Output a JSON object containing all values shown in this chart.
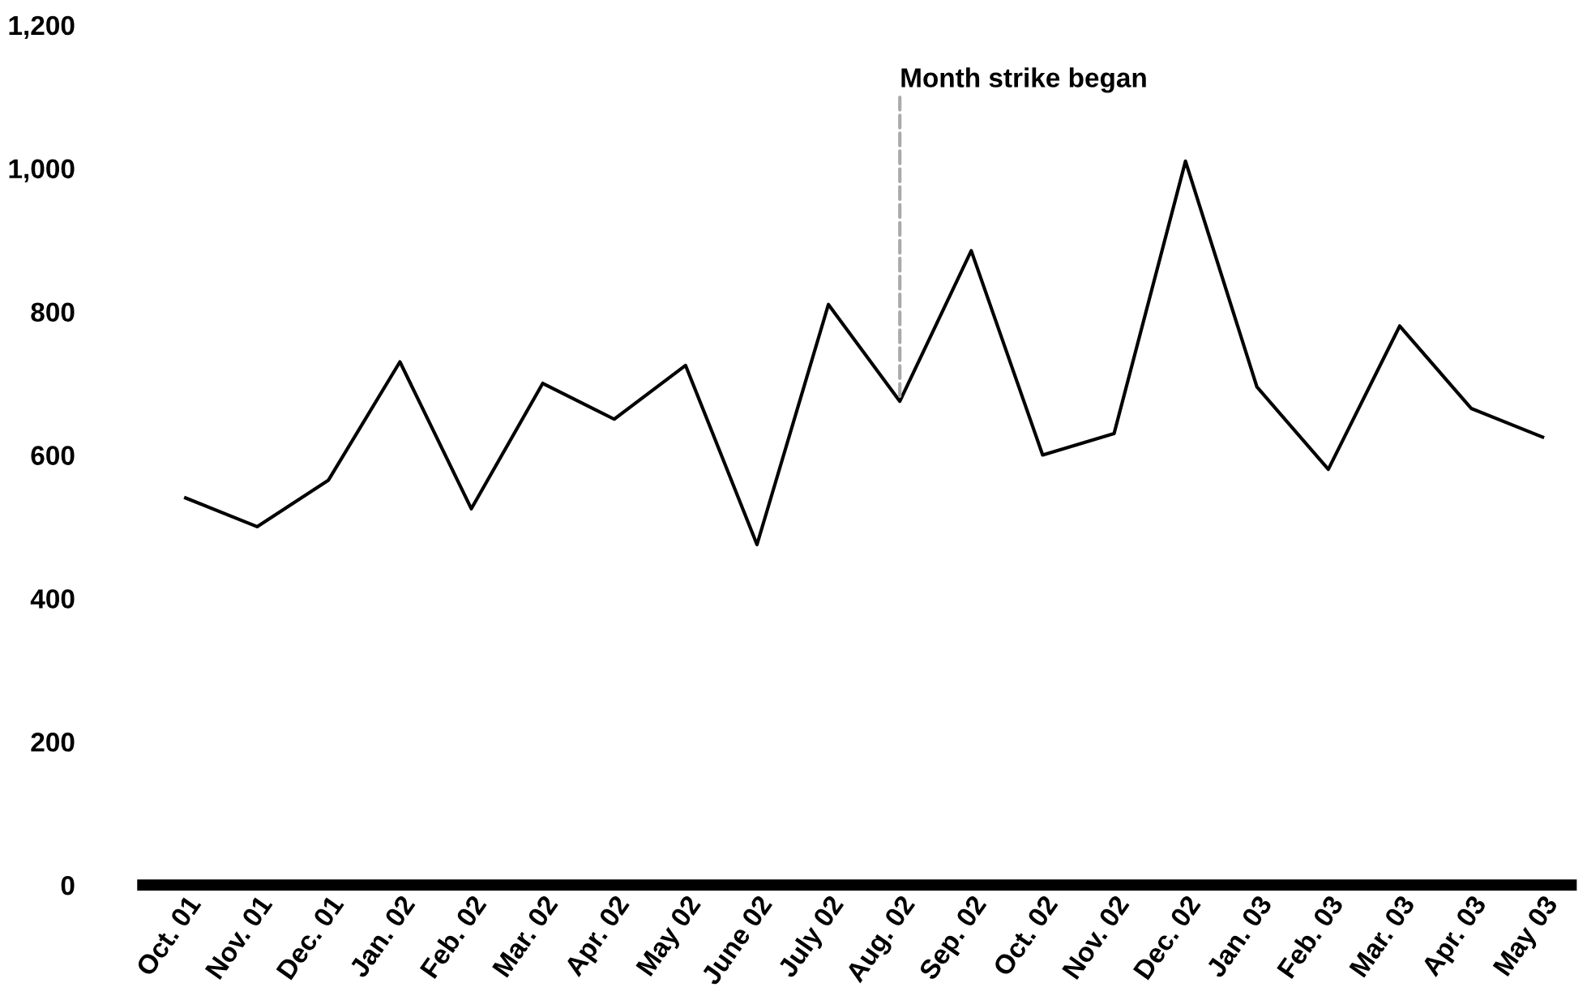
{
  "chart_data": {
    "type": "line",
    "categories": [
      "Oct. 01",
      "Nov. 01",
      "Dec. 01",
      "Jan. 02",
      "Feb. 02",
      "Mar. 02",
      "Apr. 02",
      "May 02",
      "June 02",
      "July 02",
      "Aug. 02",
      "Sep. 02",
      "Oct. 02",
      "Nov. 02",
      "Dec. 02",
      "Jan. 03",
      "Feb. 03",
      "Mar. 03",
      "Apr. 03",
      "May 03"
    ],
    "series": [
      {
        "color": "#000000",
        "values": [
          540,
          500,
          565,
          730,
          525,
          700,
          650,
          725,
          475,
          810,
          675,
          885,
          600,
          630,
          1010,
          695,
          580,
          780,
          665,
          625
        ]
      }
    ],
    "ylim": [
      0,
      1200
    ],
    "yticks": [
      0,
      {
        "value": 200,
        "label": "200"
      },
      400,
      600,
      800,
      {
        "value": 1000,
        "label": "1,000"
      },
      {
        "value": 1200,
        "label": "1,200"
      }
    ],
    "annotations": [
      {
        "text": "Month strike began",
        "x": "Aug. 02",
        "y": 675
      }
    ],
    "grid": false,
    "marker": "none",
    "line_style": "solid"
  }
}
